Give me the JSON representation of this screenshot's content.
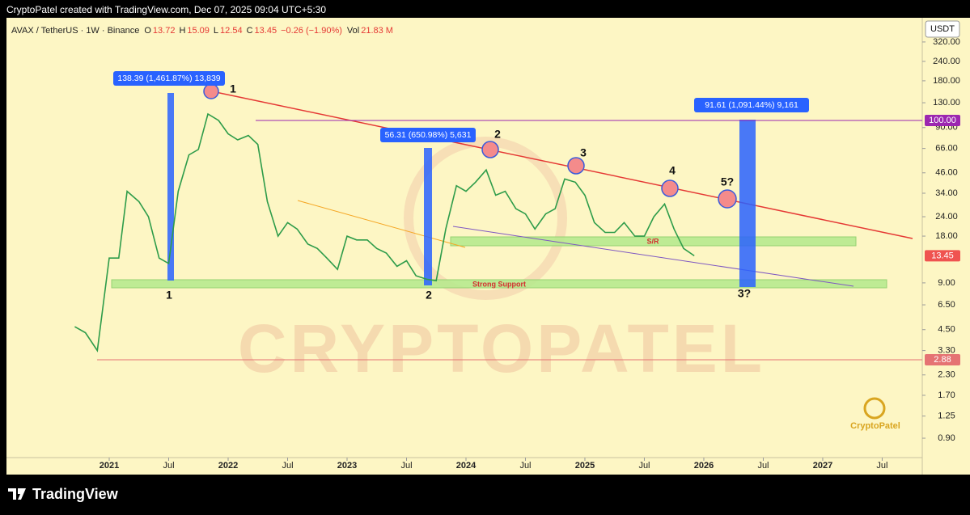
{
  "header": {
    "attribution": "CryptoPatel created with TradingView.com, Dec 07, 2025 09:04 UTC+5:30",
    "symbol": "AVAX / TetherUS · 1W · Binance",
    "ohlc": [
      {
        "label": "O",
        "value": 13.72
      },
      {
        "label": "H",
        "value": 15.09
      },
      {
        "label": "L",
        "value": 12.54
      },
      {
        "label": "C",
        "value": 13.45
      }
    ],
    "change": "−0.26 (−1.90%)",
    "volume_label": "Vol",
    "volume": "21.83 M"
  },
  "chart_data": {
    "type": "line",
    "currency": "USDT",
    "log_scale": true,
    "color": "#2e9c4a",
    "x": [
      2020.71,
      2020.8,
      2020.9,
      2021.0,
      2021.08,
      2021.15,
      2021.25,
      2021.33,
      2021.42,
      2021.5,
      2021.58,
      2021.67,
      2021.75,
      2021.83,
      2021.92,
      2022.0,
      2022.08,
      2022.17,
      2022.25,
      2022.33,
      2022.42,
      2022.5,
      2022.58,
      2022.67,
      2022.75,
      2022.83,
      2022.92,
      2023.0,
      2023.08,
      2023.17,
      2023.25,
      2023.33,
      2023.42,
      2023.5,
      2023.58,
      2023.67,
      2023.75,
      2023.83,
      2023.92,
      2024.0,
      2024.08,
      2024.17,
      2024.25,
      2024.33,
      2024.42,
      2024.5,
      2024.58,
      2024.67,
      2024.75,
      2024.83,
      2024.92,
      2025.0,
      2025.08,
      2025.17,
      2025.25,
      2025.33,
      2025.42,
      2025.5,
      2025.58,
      2025.67,
      2025.75,
      2025.83,
      2025.92
    ],
    "values": [
      4.7,
      4.3,
      3.3,
      13,
      13,
      35,
      30,
      24,
      13,
      12,
      35,
      60,
      65,
      110,
      100,
      82,
      75,
      80,
      70,
      30,
      18,
      22,
      20,
      16,
      15,
      13,
      11,
      18,
      17,
      17,
      15,
      14,
      11.5,
      12.5,
      10,
      9.5,
      9.3,
      20,
      38,
      35,
      40,
      48,
      33,
      35,
      27,
      25,
      20,
      25,
      27,
      42,
      40,
      33,
      22,
      19,
      19,
      22,
      18,
      18,
      24,
      29,
      20,
      15,
      13.45
    ],
    "xlim": [
      2020.136,
      2027.837
    ],
    "ylim": [
      0.525,
      458
    ],
    "xticks": [
      2021,
      {
        "value": 2021.5,
        "label": "Jul"
      },
      2022,
      {
        "value": 2022.5,
        "label": "Jul"
      },
      2023,
      {
        "value": 2023.5,
        "label": "Jul"
      },
      2024,
      {
        "value": 2024.5,
        "label": "Jul"
      },
      2025,
      {
        "value": 2025.5,
        "label": "Jul"
      },
      2026,
      {
        "value": 2026.5,
        "label": "Jul"
      },
      2027,
      {
        "value": 2027.5,
        "label": "Jul"
      }
    ],
    "yticks": [
      {
        "value": 320,
        "label": "320.00"
      },
      {
        "value": 240,
        "label": "240.00"
      },
      {
        "value": 180,
        "label": "180.00"
      },
      {
        "value": 130,
        "label": "130.00"
      },
      {
        "value": 90,
        "label": "90.00"
      },
      {
        "value": 66,
        "label": "66.00"
      },
      {
        "value": 46,
        "label": "46.00"
      },
      {
        "value": 34,
        "label": "34.00"
      },
      {
        "value": 24,
        "label": "24.00"
      },
      {
        "value": 18,
        "label": "18.00"
      },
      {
        "value": 9,
        "label": "9.00"
      },
      {
        "value": 6.5,
        "label": "6.50"
      },
      {
        "value": 4.5,
        "label": "4.50"
      },
      {
        "value": 3.3,
        "label": "3.30"
      },
      {
        "value": 2.3,
        "label": "2.30"
      },
      {
        "value": 1.7,
        "label": "1.70"
      },
      {
        "value": 1.25,
        "label": "1.25"
      },
      {
        "value": 0.9,
        "label": "0.90"
      }
    ],
    "levels": [
      {
        "value": 100,
        "label": "100.00",
        "color": "#9c27b0"
      },
      {
        "value": 2.88,
        "label": "2.88",
        "color": "#e57373"
      },
      {
        "value": 13.45,
        "label": "13.45",
        "color": "#ef5350"
      }
    ],
    "measurements": [
      "138.39 (1,461.87%) 13,839",
      "56.31 (650.98%) 5,631",
      "91.61 (1,091.44%) 9,161"
    ],
    "annotations": [
      "1",
      "2",
      "3",
      "4",
      "5?",
      "1",
      "2",
      "3?",
      "S/R",
      "Strong Support"
    ]
  },
  "footer": {
    "brand": "TradingView",
    "watermark": "CRYPTOPATEL",
    "logo_text": "CryptoPatel"
  }
}
